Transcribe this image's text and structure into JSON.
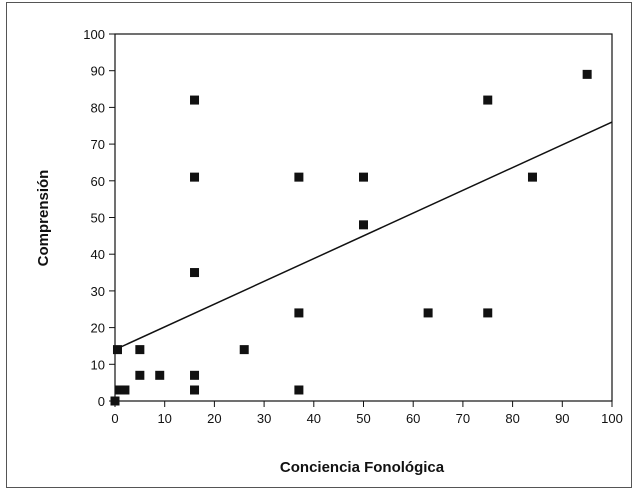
{
  "chart_data": {
    "type": "scatter",
    "title": "",
    "xlabel": "Conciencia Fonológica",
    "ylabel": "Comprensión",
    "xlim": [
      0,
      100
    ],
    "ylim": [
      0,
      100
    ],
    "x_ticks": [
      0,
      10,
      20,
      30,
      40,
      50,
      60,
      70,
      80,
      90,
      100
    ],
    "y_ticks": [
      0,
      10,
      20,
      30,
      40,
      50,
      60,
      70,
      80,
      90,
      100
    ],
    "grid": false,
    "legend": "none",
    "marker_color": "#111111",
    "points": [
      {
        "x": 0,
        "y": 0
      },
      {
        "x": 0.5,
        "y": 14
      },
      {
        "x": 1,
        "y": 3
      },
      {
        "x": 2,
        "y": 3
      },
      {
        "x": 5,
        "y": 14
      },
      {
        "x": 5,
        "y": 7
      },
      {
        "x": 9,
        "y": 7
      },
      {
        "x": 16,
        "y": 82
      },
      {
        "x": 16,
        "y": 61
      },
      {
        "x": 16,
        "y": 35
      },
      {
        "x": 16,
        "y": 7
      },
      {
        "x": 16,
        "y": 3
      },
      {
        "x": 26,
        "y": 14
      },
      {
        "x": 37,
        "y": 61
      },
      {
        "x": 37,
        "y": 24
      },
      {
        "x": 37,
        "y": 3
      },
      {
        "x": 50,
        "y": 61
      },
      {
        "x": 50,
        "y": 48
      },
      {
        "x": 63,
        "y": 24
      },
      {
        "x": 75,
        "y": 82
      },
      {
        "x": 75,
        "y": 24
      },
      {
        "x": 84,
        "y": 61
      },
      {
        "x": 95,
        "y": 89
      }
    ],
    "trend_line": {
      "x": [
        0,
        100
      ],
      "y": [
        14,
        76
      ]
    }
  }
}
